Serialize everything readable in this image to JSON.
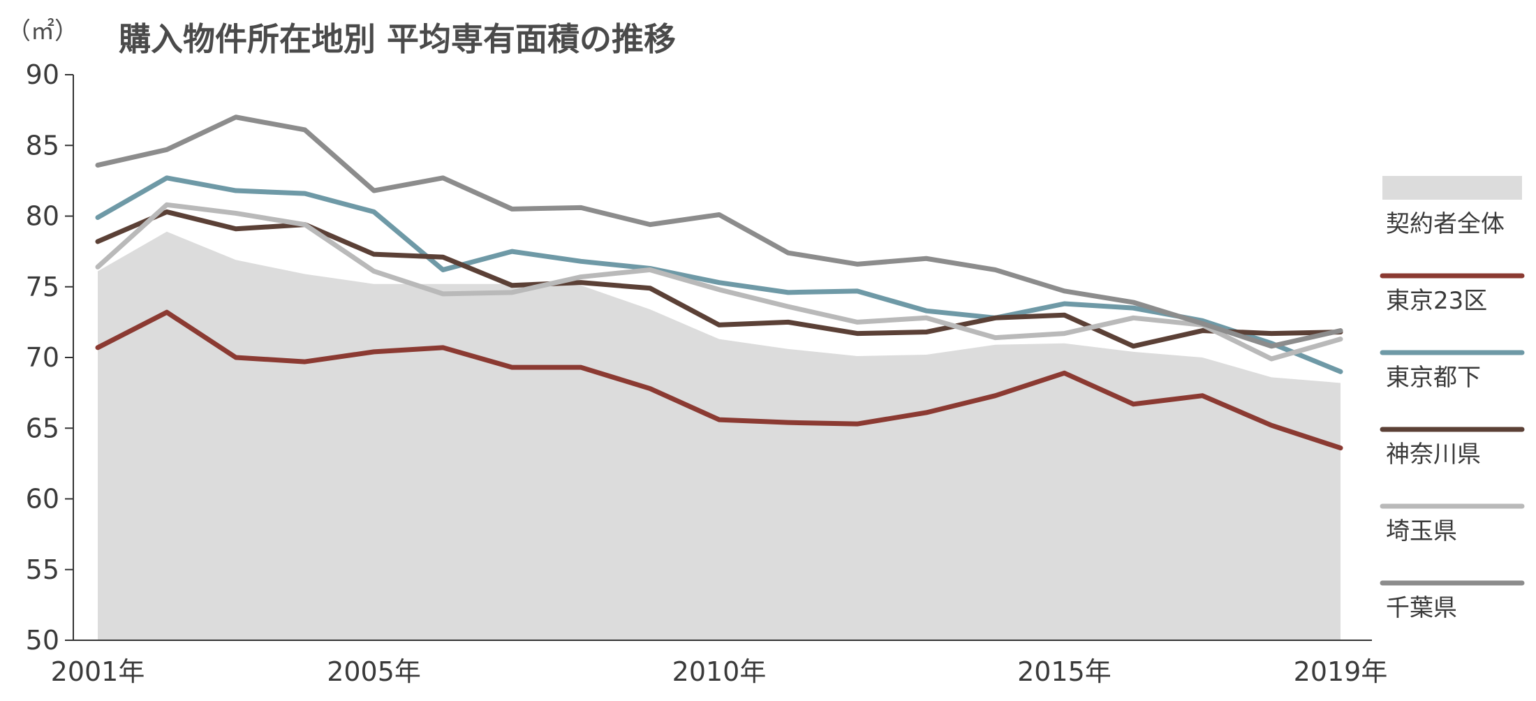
{
  "chart_data": {
    "type": "line",
    "title": "購入物件所在地別 平均専有面積の推移",
    "unit_label": "（㎡）",
    "xlabel": "",
    "ylabel": "",
    "ylim": [
      50,
      90
    ],
    "yticks": [
      50,
      55,
      60,
      65,
      70,
      75,
      80,
      85,
      90
    ],
    "x": [
      2001,
      2002,
      2003,
      2004,
      2005,
      2006,
      2007,
      2008,
      2009,
      2010,
      2011,
      2012,
      2013,
      2014,
      2015,
      2016,
      2017,
      2018,
      2019
    ],
    "xticks": [
      {
        "year": 2001,
        "label": "2001年"
      },
      {
        "year": 2005,
        "label": "2005年"
      },
      {
        "year": 2010,
        "label": "2010年"
      },
      {
        "year": 2015,
        "label": "2015年"
      },
      {
        "year": 2019,
        "label": "2019年"
      }
    ],
    "grid": false,
    "legend_position": "right",
    "area_series": {
      "name": "契約者全体",
      "color": "#dcdcdc",
      "values": [
        76.1,
        78.9,
        76.9,
        75.9,
        75.2,
        75.2,
        75.2,
        75.1,
        73.4,
        71.3,
        70.6,
        70.1,
        70.2,
        70.9,
        71.0,
        70.4,
        70.0,
        68.6,
        68.2
      ]
    },
    "series": [
      {
        "name": "東京23区",
        "color": "#8b3a32",
        "values": [
          70.7,
          73.2,
          70.0,
          69.7,
          70.4,
          70.7,
          69.3,
          69.3,
          67.8,
          65.6,
          65.4,
          65.3,
          66.1,
          67.3,
          68.9,
          66.7,
          67.3,
          65.2,
          63.6
        ]
      },
      {
        "name": "東京都下",
        "color": "#6e99a6",
        "values": [
          79.9,
          82.7,
          81.8,
          81.6,
          80.3,
          76.2,
          77.5,
          76.8,
          76.3,
          75.3,
          74.6,
          74.7,
          73.3,
          72.8,
          73.8,
          73.5,
          72.6,
          71.0,
          69.0
        ]
      },
      {
        "name": "神奈川県",
        "color": "#5b4036",
        "values": [
          78.2,
          80.3,
          79.1,
          79.4,
          77.3,
          77.1,
          75.1,
          75.3,
          74.9,
          72.3,
          72.5,
          71.7,
          71.8,
          72.8,
          73.0,
          70.8,
          71.9,
          71.7,
          71.8
        ]
      },
      {
        "name": "埼玉県",
        "color": "#b9b9b9",
        "values": [
          76.4,
          80.8,
          80.2,
          79.4,
          76.1,
          74.5,
          74.6,
          75.7,
          76.2,
          74.8,
          73.6,
          72.5,
          72.8,
          71.4,
          71.7,
          72.8,
          72.3,
          69.9,
          71.3
        ]
      },
      {
        "name": "千葉県",
        "color": "#8c8c8c",
        "values": [
          83.6,
          84.7,
          87.0,
          86.1,
          81.8,
          82.7,
          80.5,
          80.6,
          79.4,
          80.1,
          77.4,
          76.6,
          77.0,
          76.2,
          74.7,
          73.9,
          72.4,
          70.8,
          71.9
        ]
      }
    ]
  }
}
